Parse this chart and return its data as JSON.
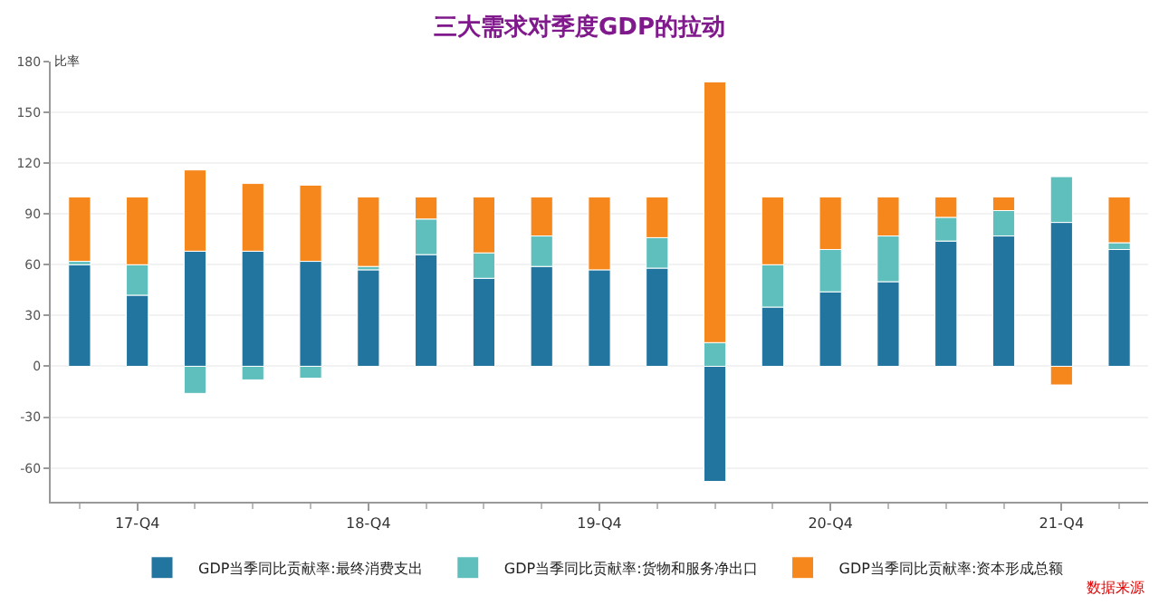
{
  "chart_data": {
    "type": "bar",
    "title": "三大需求对季度GDP的拉动",
    "ylabel": "比率",
    "stacked": true,
    "categories": [
      null,
      "17-Q4",
      null,
      null,
      null,
      "18-Q4",
      null,
      null,
      null,
      "19-Q4",
      null,
      null,
      null,
      "20-Q4",
      null,
      null,
      null,
      "21-Q4",
      null
    ],
    "series": [
      {
        "name": "GDP当季同比贡献率:最终消费支出",
        "color": "#21759f",
        "values": [
          60,
          42,
          68,
          68,
          62,
          57,
          66,
          52,
          59,
          57,
          58,
          -68,
          35,
          44,
          50,
          74,
          77,
          85,
          69
        ]
      },
      {
        "name": "GDP当季同比贡献率:货物和服务净出口",
        "color": "#5fbfbd",
        "values": [
          2,
          18,
          -16,
          -8,
          -7,
          2,
          21,
          15,
          18,
          null,
          18,
          14,
          25,
          25,
          27,
          14,
          15,
          27,
          4
        ]
      },
      {
        "name": "GDP当季同比贡献率:资本形成总额",
        "color": "#f5871c",
        "values": [
          38,
          40,
          48,
          40,
          45,
          41,
          13,
          33,
          23,
          43,
          24,
          154,
          40,
          31,
          23,
          12,
          8,
          -11,
          27
        ]
      }
    ],
    "ylim": [
      -80,
      180
    ],
    "yticks": [
      -60,
      -30,
      0,
      30,
      60,
      90,
      120,
      150,
      180
    ],
    "grid": "y",
    "legend": "bottom",
    "annotations": [
      "数据来源"
    ]
  }
}
